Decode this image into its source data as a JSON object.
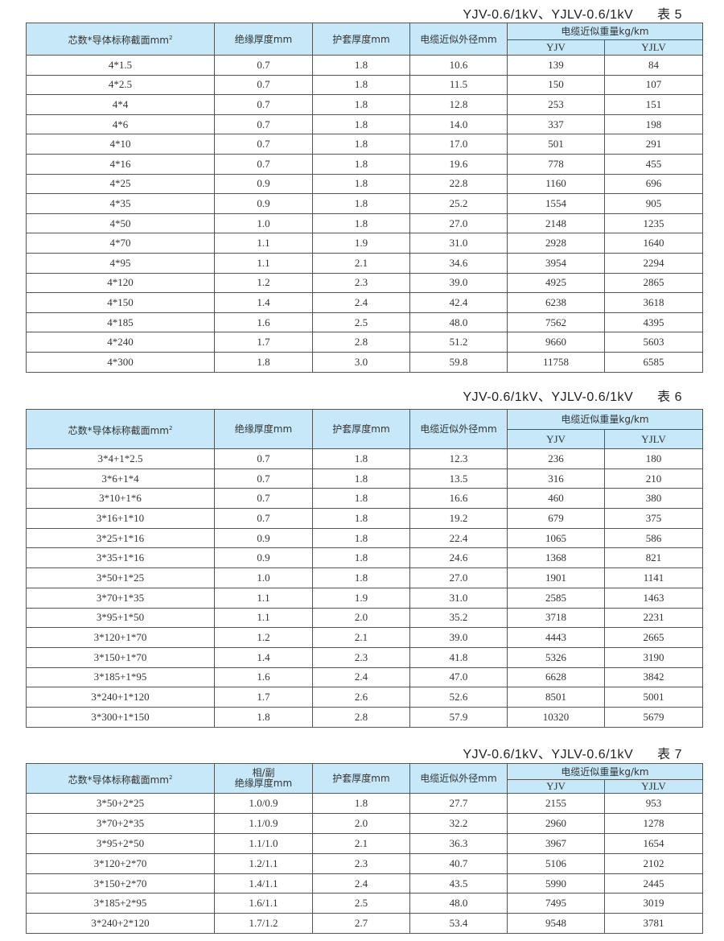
{
  "headers": {
    "spec": "芯数*导体标称截面mm",
    "spec_sup": "2",
    "insulation": "绝缘厚度mm",
    "insulation_t7_line1": "相/副",
    "insulation_t7_line2": "绝缘厚度mm",
    "sheath": "护套厚度mm",
    "diameter": "电缆近似外径mm",
    "weight": "电缆近似重量kg/km",
    "yjv": "YJV",
    "yjlv": "YJLV"
  },
  "tables": [
    {
      "model": "YJV-0.6/1kV、YJLV-0.6/1kV",
      "label": "表 5",
      "rows": [
        [
          "4*1.5",
          "0.7",
          "1.8",
          "10.6",
          "139",
          "84"
        ],
        [
          "4*2.5",
          "0.7",
          "1.8",
          "11.5",
          "150",
          "107"
        ],
        [
          "4*4",
          "0.7",
          "1.8",
          "12.8",
          "253",
          "151"
        ],
        [
          "4*6",
          "0.7",
          "1.8",
          "14.0",
          "337",
          "198"
        ],
        [
          "4*10",
          "0.7",
          "1.8",
          "17.0",
          "501",
          "291"
        ],
        [
          "4*16",
          "0.7",
          "1.8",
          "19.6",
          "778",
          "455"
        ],
        [
          "4*25",
          "0.9",
          "1.8",
          "22.8",
          "1160",
          "696"
        ],
        [
          "4*35",
          "0.9",
          "1.8",
          "25.2",
          "1554",
          "905"
        ],
        [
          "4*50",
          "1.0",
          "1.8",
          "27.0",
          "2148",
          "1235"
        ],
        [
          "4*70",
          "1.1",
          "1.9",
          "31.0",
          "2928",
          "1640"
        ],
        [
          "4*95",
          "1.1",
          "2.1",
          "34.6",
          "3954",
          "2294"
        ],
        [
          "4*120",
          "1.2",
          "2.3",
          "39.0",
          "4925",
          "2865"
        ],
        [
          "4*150",
          "1.4",
          "2.4",
          "42.4",
          "6238",
          "3618"
        ],
        [
          "4*185",
          "1.6",
          "2.5",
          "48.0",
          "7562",
          "4395"
        ],
        [
          "4*240",
          "1.7",
          "2.8",
          "51.2",
          "9660",
          "5603"
        ],
        [
          "4*300",
          "1.8",
          "3.0",
          "59.8",
          "11758",
          "6585"
        ]
      ]
    },
    {
      "model": "YJV-0.6/1kV、YJLV-0.6/1kV",
      "label": "表 6",
      "rows": [
        [
          "3*4+1*2.5",
          "0.7",
          "1.8",
          "12.3",
          "236",
          "180"
        ],
        [
          "3*6+1*4",
          "0.7",
          "1.8",
          "13.5",
          "316",
          "210"
        ],
        [
          "3*10+1*6",
          "0.7",
          "1.8",
          "16.6",
          "460",
          "380"
        ],
        [
          "3*16+1*10",
          "0.7",
          "1.8",
          "19.2",
          "679",
          "375"
        ],
        [
          "3*25+1*16",
          "0.9",
          "1.8",
          "22.4",
          "1065",
          "586"
        ],
        [
          "3*35+1*16",
          "0.9",
          "1.8",
          "24.6",
          "1368",
          "821"
        ],
        [
          "3*50+1*25",
          "1.0",
          "1.8",
          "27.0",
          "1901",
          "1141"
        ],
        [
          "3*70+1*35",
          "1.1",
          "1.9",
          "31.0",
          "2585",
          "1463"
        ],
        [
          "3*95+1*50",
          "1.1",
          "2.0",
          "35.2",
          "3718",
          "2231"
        ],
        [
          "3*120+1*70",
          "1.2",
          "2.1",
          "39.0",
          "4443",
          "2665"
        ],
        [
          "3*150+1*70",
          "1.4",
          "2.3",
          "41.8",
          "5326",
          "3190"
        ],
        [
          "3*185+1*95",
          "1.6",
          "2.4",
          "47.0",
          "6628",
          "3842"
        ],
        [
          "3*240+1*120",
          "1.7",
          "2.6",
          "52.6",
          "8501",
          "5001"
        ],
        [
          "3*300+1*150",
          "1.8",
          "2.8",
          "57.9",
          "10320",
          "5679"
        ]
      ]
    },
    {
      "model": "YJV-0.6/1kV、YJLV-0.6/1kV",
      "label": "表 7",
      "rows": [
        [
          "3*50+2*25",
          "1.0/0.9",
          "1.8",
          "27.7",
          "2155",
          "953"
        ],
        [
          "3*70+2*35",
          "1.1/0.9",
          "2.0",
          "32.2",
          "2960",
          "1278"
        ],
        [
          "3*95+2*50",
          "1.1/1.0",
          "2.1",
          "36.3",
          "3967",
          "1654"
        ],
        [
          "3*120+2*70",
          "1.2/1.1",
          "2.3",
          "40.7",
          "5106",
          "2102"
        ],
        [
          "3*150+2*70",
          "1.4/1.1",
          "2.4",
          "43.5",
          "5990",
          "2445"
        ],
        [
          "3*185+2*95",
          "1.6/1.1",
          "2.5",
          "48.0",
          "7495",
          "3019"
        ],
        [
          "3*240+2*120",
          "1.7/1.2",
          "2.7",
          "53.4",
          "9548",
          "3781"
        ]
      ]
    }
  ],
  "colors": {
    "header_bg": "#c7e8f8",
    "border": "#555555"
  }
}
